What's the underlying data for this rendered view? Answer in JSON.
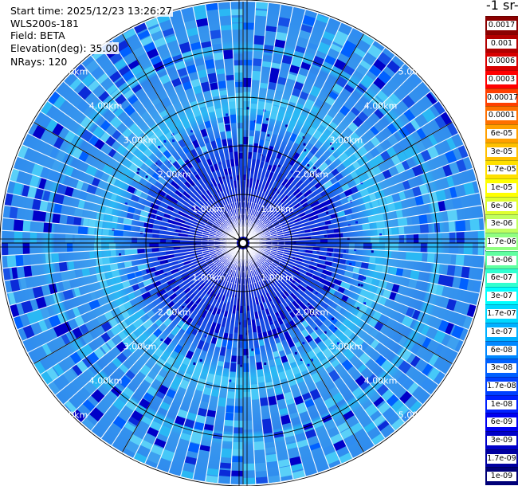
{
  "header": {
    "start_time": "Start time: 2025/12/23 13:26:27",
    "instrument": "WLS200s-181",
    "field": "Field: BETA",
    "elevation": "Elevation(deg): 35.00",
    "nrays": "NRays: 120"
  },
  "colorbar": {
    "units_label": "-1 sr-",
    "labels": [
      "0.0017",
      "0.001",
      "0.0006",
      "0.0003",
      "0.00017",
      "0.0001",
      "6e-05",
      "3e-05",
      "1.7e-05",
      "1e-05",
      "6e-06",
      "3e-06",
      "1.7e-06",
      "1e-06",
      "6e-07",
      "3e-07",
      "1.7e-07",
      "1e-07",
      "6e-08",
      "3e-08",
      "1.7e-08",
      "1e-08",
      "6e-09",
      "3e-09",
      "1.7e-09",
      "1e-09"
    ],
    "colors": [
      "#8b0000",
      "#b20000",
      "#d80000",
      "#ff0000",
      "#ff4000",
      "#ff7000",
      "#ffa000",
      "#ffc000",
      "#ffe000",
      "#ffff00",
      "#e0ff30",
      "#c0ff60",
      "#90ff80",
      "#60ffa0",
      "#30ffd0",
      "#00ffff",
      "#00d8ff",
      "#00b0ff",
      "#0088ff",
      "#0060ff",
      "#0040ff",
      "#0020ff",
      "#0000f0",
      "#0000c8",
      "#0000a0",
      "#000078"
    ]
  },
  "range_labels": [
    "1.00km",
    "2.00km",
    "3.00km",
    "4.00km",
    "5.00km"
  ],
  "map": {
    "center_color": "#000000",
    "background_color": "#3a9cf0",
    "near_color": "#0a2ad8",
    "ring_highlight_color": "#29d0f5",
    "ray_separator_color": "#ffffff"
  }
}
